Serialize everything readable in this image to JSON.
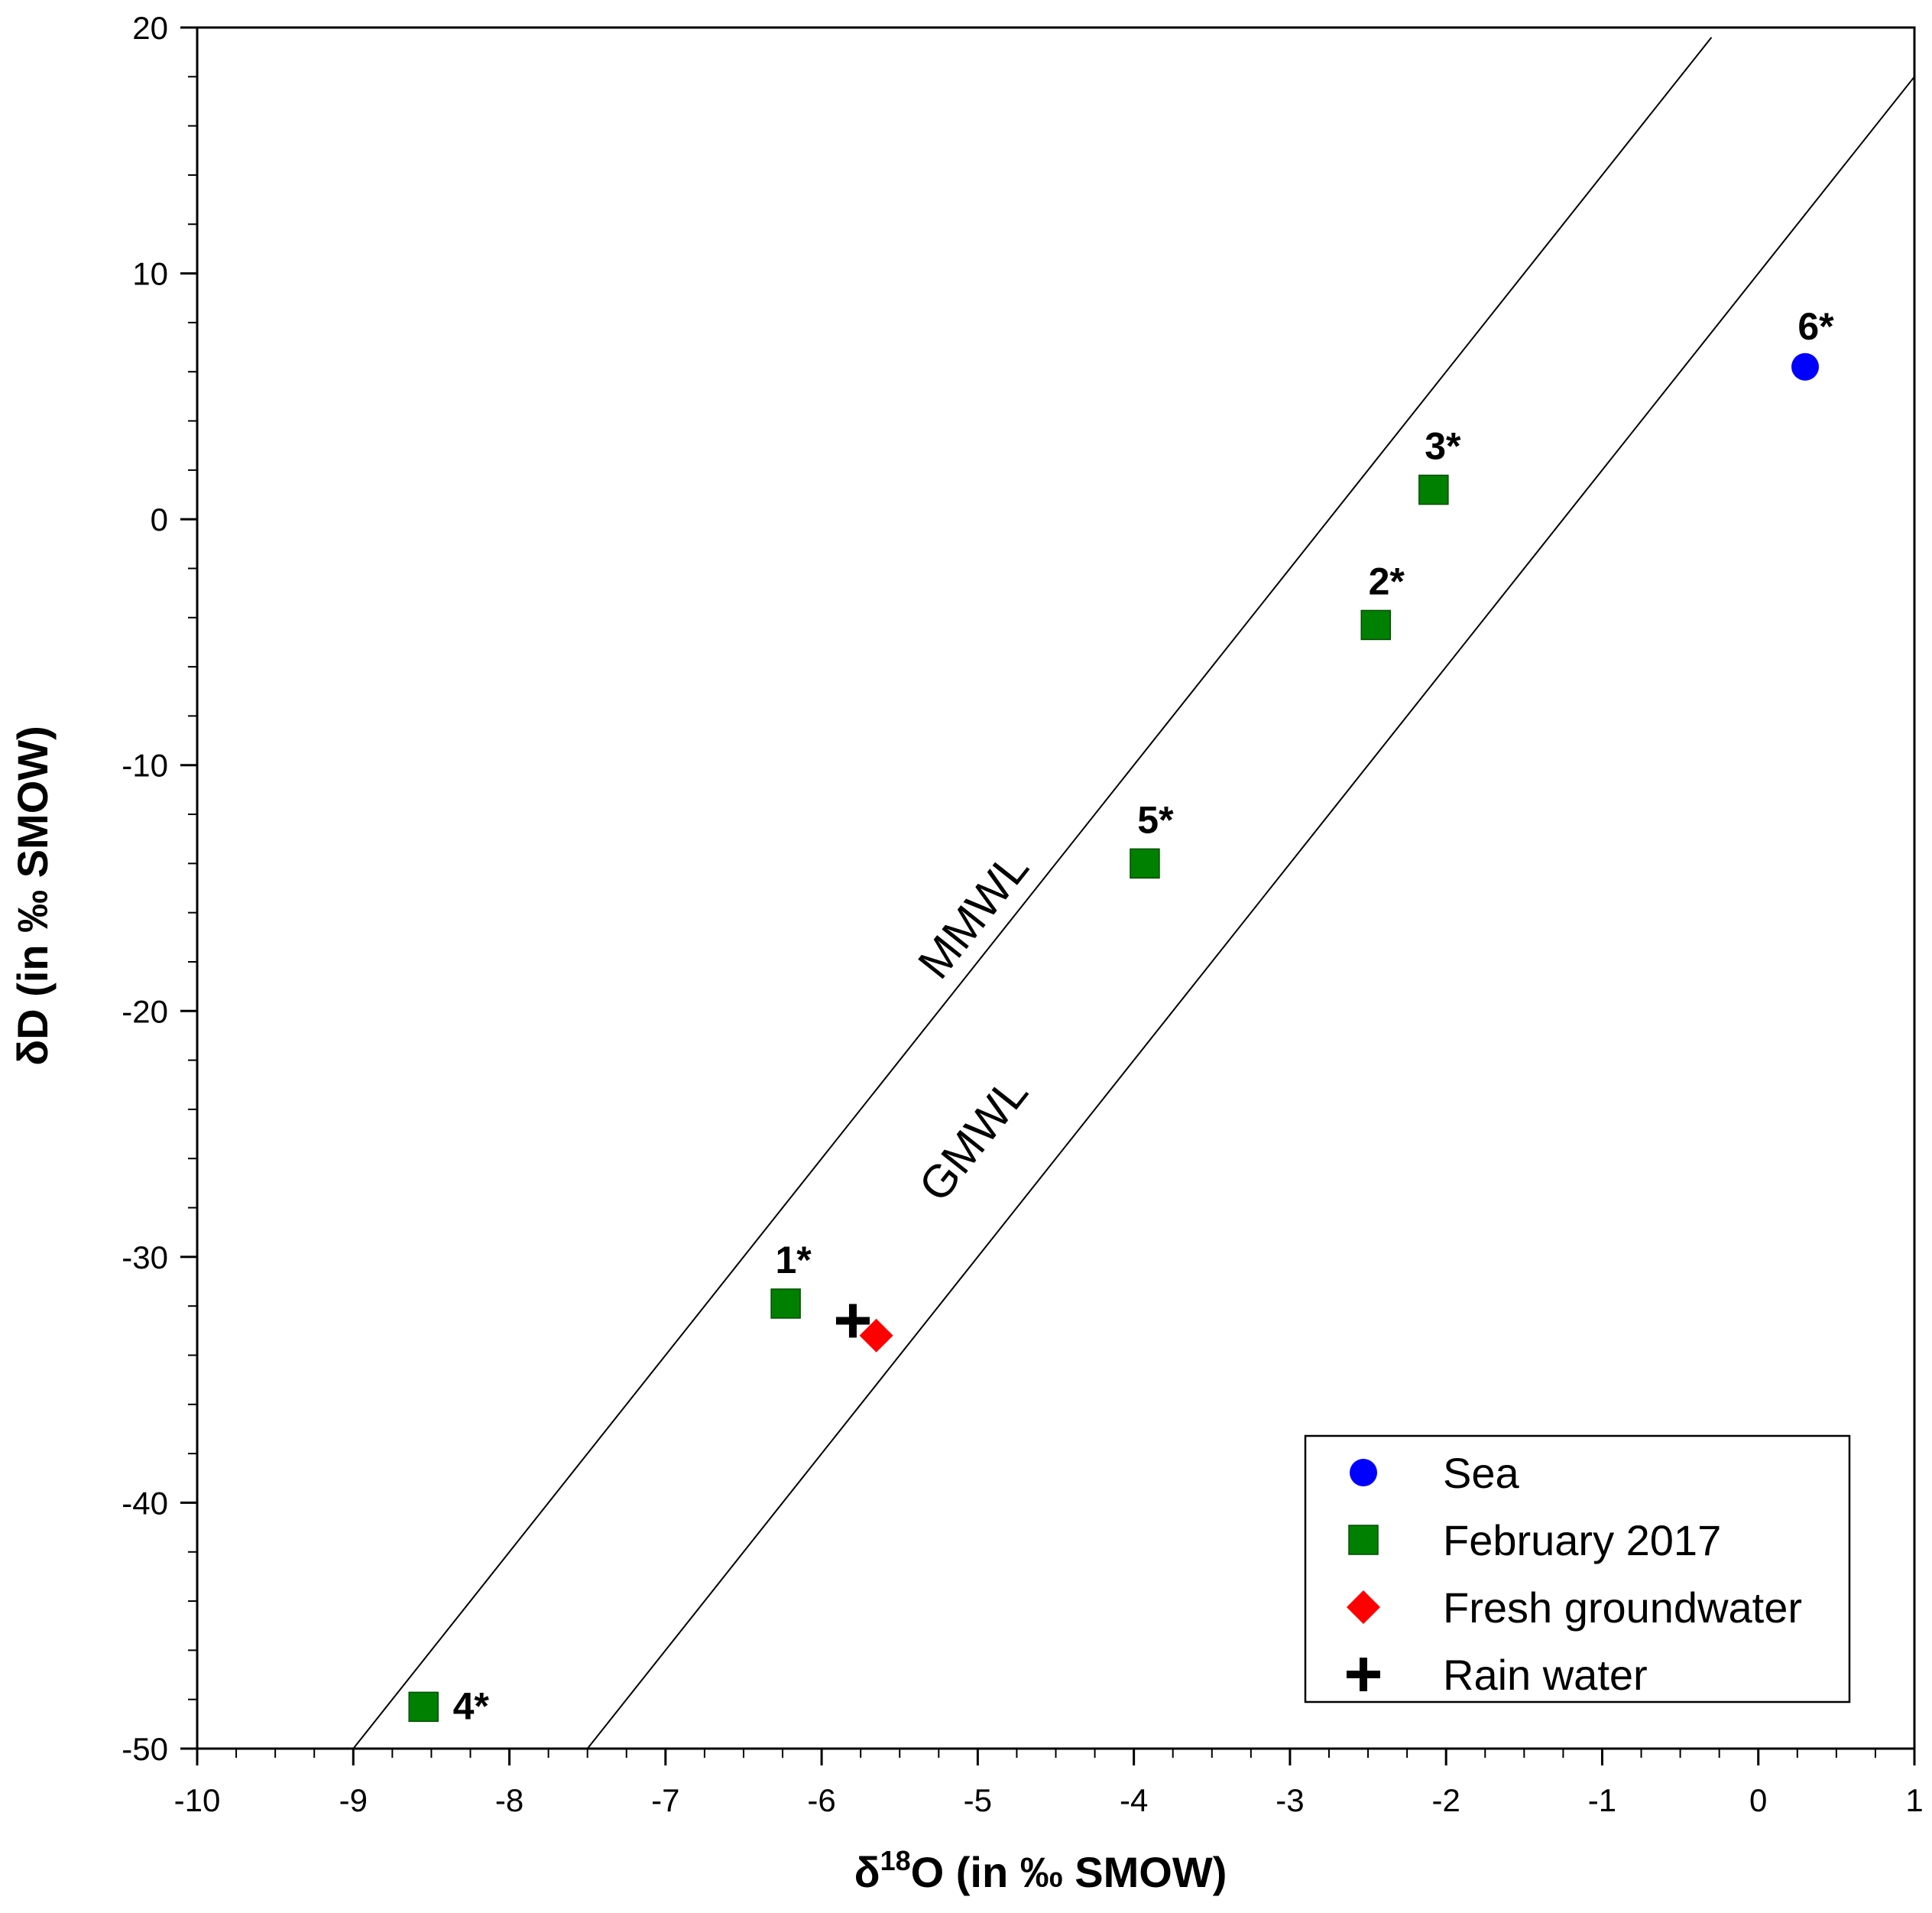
{
  "chart_data": {
    "type": "scatter",
    "xlabel": {
      "prefix": "δ",
      "sup": "18",
      "main": "O (in ‰ SMOW)"
    },
    "ylabel": "δD (in ‰ SMOW)",
    "xlim": [
      -10,
      1
    ],
    "ylim": [
      -50,
      20
    ],
    "x_ticks": [
      -10,
      -9,
      -8,
      -7,
      -6,
      -5,
      -4,
      -3,
      -2,
      -1,
      0,
      1
    ],
    "y_ticks": [
      -50,
      -40,
      -30,
      -20,
      -10,
      0,
      10,
      20
    ],
    "grid": false,
    "legend_position": "bottom-right",
    "series": [
      {
        "name": "Sea",
        "marker": "circle",
        "color": "#0000ff",
        "points": [
          {
            "x": 0.3,
            "y": 6.2,
            "label": "6*"
          }
        ]
      },
      {
        "name": "February 2017",
        "marker": "square",
        "color": "#008000",
        "points": [
          {
            "x": -6.23,
            "y": -31.9,
            "label": "1*"
          },
          {
            "x": -2.45,
            "y": -4.3,
            "label": "2*"
          },
          {
            "x": -2.08,
            "y": 1.2,
            "label": "3*"
          },
          {
            "x": -8.55,
            "y": -48.3,
            "label": "4*"
          },
          {
            "x": -3.93,
            "y": -14.0,
            "label": "5*"
          }
        ]
      },
      {
        "name": "Fresh groundwater",
        "marker": "diamond",
        "color": "#ff0000",
        "points": [
          {
            "x": -5.65,
            "y": -33.2,
            "label": ""
          }
        ]
      },
      {
        "name": "Rain water",
        "marker": "plus",
        "color": "#000000",
        "points": [
          {
            "x": -5.8,
            "y": -32.6,
            "label": ""
          }
        ]
      }
    ],
    "lines": [
      {
        "name": "MMWL",
        "slope": 8,
        "intercept": 22,
        "x_range": [
          -9,
          -0.3
        ]
      },
      {
        "name": "GMWL",
        "slope": 8,
        "intercept": 10,
        "x_range": [
          -7.5,
          1
        ]
      }
    ]
  }
}
